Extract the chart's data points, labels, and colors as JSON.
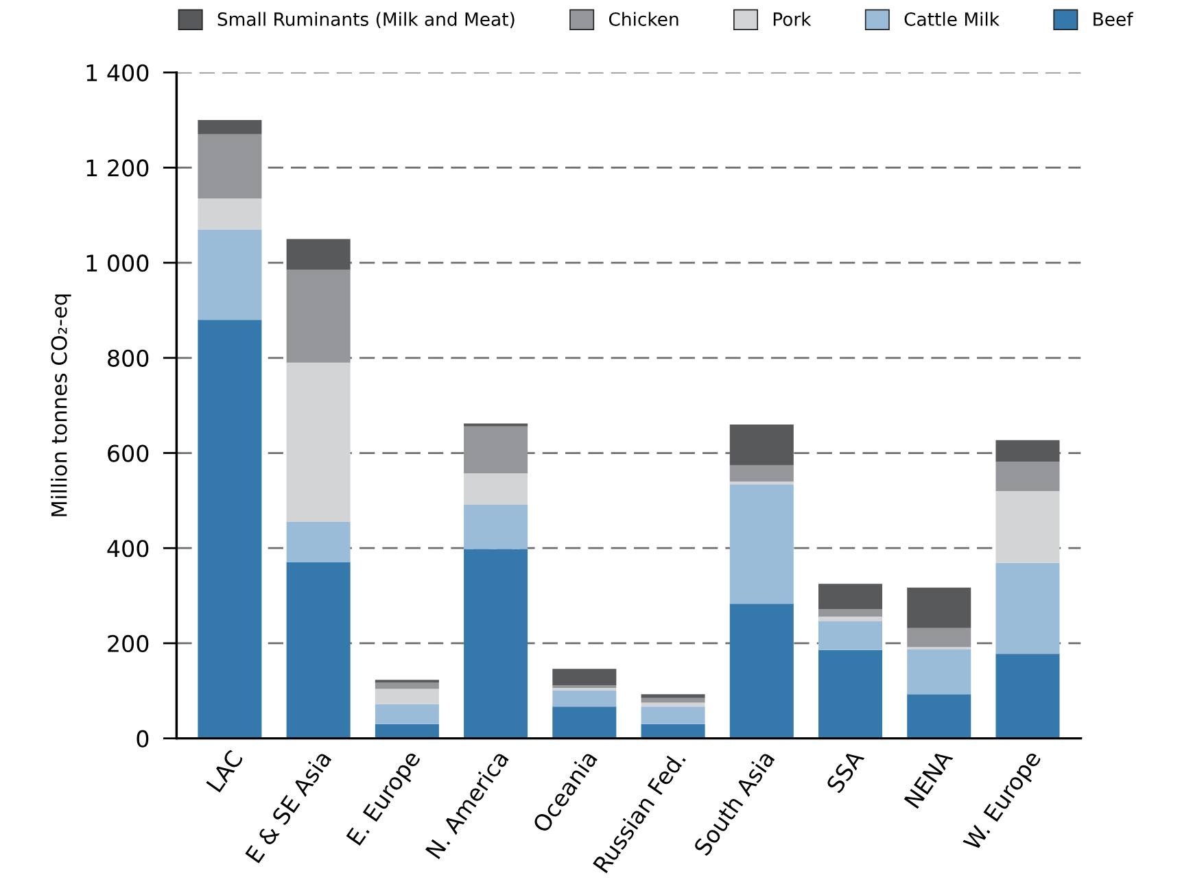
{
  "chart_data": {
    "type": "bar",
    "stacked": true,
    "ylabel": "Million tonnes CO₂-eq",
    "categories": [
      "LAC",
      "E & SE Asia",
      "E. Europe",
      "N. America",
      "Oceania",
      "Russian Fed.",
      "South Asia",
      "SSA",
      "NENA",
      "W. Europe"
    ],
    "series": [
      {
        "name": "Beef",
        "color": "#3478ac",
        "values": [
          880,
          370,
          30,
          398,
          67,
          30,
          283,
          186,
          93,
          178
        ]
      },
      {
        "name": "Cattle Milk",
        "color": "#9bbcd9",
        "values": [
          190,
          85,
          42,
          93,
          34,
          37,
          251,
          60,
          94,
          191
        ]
      },
      {
        "name": "Pork",
        "color": "#d3d4d6",
        "values": [
          65,
          335,
          32,
          66,
          5,
          8,
          6,
          10,
          5,
          151
        ]
      },
      {
        "name": "Chicken",
        "color": "#959699",
        "values": [
          135,
          195,
          13,
          99,
          6,
          10,
          34,
          16,
          40,
          62
        ]
      },
      {
        "name": "Small Ruminants (Milk and Meat)",
        "color": "#58595b",
        "values": [
          30,
          65,
          6,
          6,
          34,
          8,
          86,
          53,
          85,
          45
        ]
      }
    ],
    "ylim": [
      0,
      1400
    ],
    "yticks": [
      0,
      200,
      400,
      600,
      800,
      1000,
      1200,
      1400
    ],
    "grid": "y",
    "legend": "top"
  }
}
